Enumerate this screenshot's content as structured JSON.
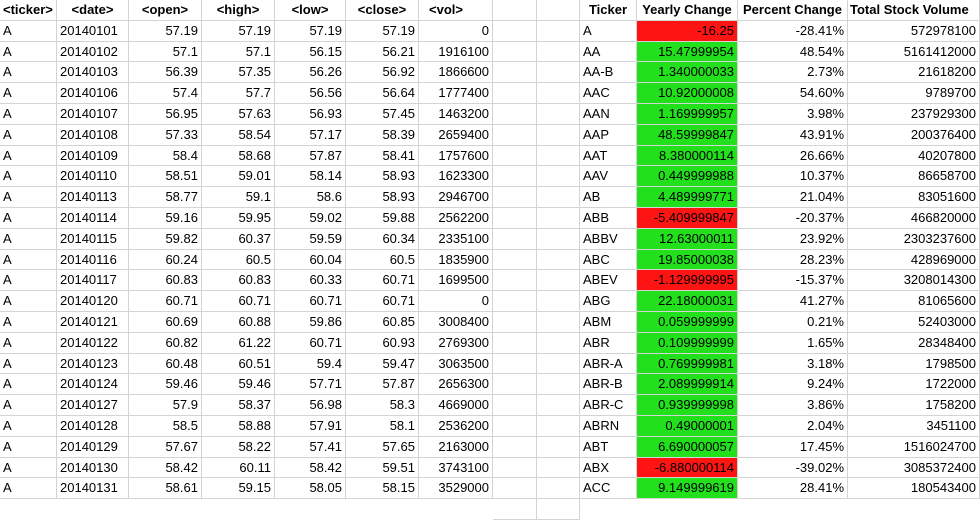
{
  "colors": {
    "positive": "#22e01c",
    "negative": "#ff1414",
    "gridline": "#d4d4d4"
  },
  "raw_table": {
    "headers": [
      "<ticker>",
      "<date>",
      "<open>",
      "<high>",
      "<low>",
      "<close>",
      "<vol>"
    ],
    "rows": [
      [
        "A",
        "20140101",
        "57.19",
        "57.19",
        "57.19",
        "57.19",
        "0"
      ],
      [
        "A",
        "20140102",
        "57.1",
        "57.1",
        "56.15",
        "56.21",
        "1916100"
      ],
      [
        "A",
        "20140103",
        "56.39",
        "57.35",
        "56.26",
        "56.92",
        "1866600"
      ],
      [
        "A",
        "20140106",
        "57.4",
        "57.7",
        "56.56",
        "56.64",
        "1777400"
      ],
      [
        "A",
        "20140107",
        "56.95",
        "57.63",
        "56.93",
        "57.45",
        "1463200"
      ],
      [
        "A",
        "20140108",
        "57.33",
        "58.54",
        "57.17",
        "58.39",
        "2659400"
      ],
      [
        "A",
        "20140109",
        "58.4",
        "58.68",
        "57.87",
        "58.41",
        "1757600"
      ],
      [
        "A",
        "20140110",
        "58.51",
        "59.01",
        "58.14",
        "58.93",
        "1623300"
      ],
      [
        "A",
        "20140113",
        "58.77",
        "59.1",
        "58.6",
        "58.93",
        "2946700"
      ],
      [
        "A",
        "20140114",
        "59.16",
        "59.95",
        "59.02",
        "59.88",
        "2562200"
      ],
      [
        "A",
        "20140115",
        "59.82",
        "60.37",
        "59.59",
        "60.34",
        "2335100"
      ],
      [
        "A",
        "20140116",
        "60.24",
        "60.5",
        "60.04",
        "60.5",
        "1835900"
      ],
      [
        "A",
        "20140117",
        "60.83",
        "60.83",
        "60.33",
        "60.71",
        "1699500"
      ],
      [
        "A",
        "20140120",
        "60.71",
        "60.71",
        "60.71",
        "60.71",
        "0"
      ],
      [
        "A",
        "20140121",
        "60.69",
        "60.88",
        "59.86",
        "60.85",
        "3008400"
      ],
      [
        "A",
        "20140122",
        "60.82",
        "61.22",
        "60.71",
        "60.93",
        "2769300"
      ],
      [
        "A",
        "20140123",
        "60.48",
        "60.51",
        "59.4",
        "59.47",
        "3063500"
      ],
      [
        "A",
        "20140124",
        "59.46",
        "59.46",
        "57.71",
        "57.87",
        "2656300"
      ],
      [
        "A",
        "20140127",
        "57.9",
        "58.37",
        "56.98",
        "58.3",
        "4669000"
      ],
      [
        "A",
        "20140128",
        "58.5",
        "58.88",
        "57.91",
        "58.1",
        "2536200"
      ],
      [
        "A",
        "20140129",
        "57.67",
        "58.22",
        "57.41",
        "57.65",
        "2163000"
      ],
      [
        "A",
        "20140130",
        "58.42",
        "60.11",
        "58.42",
        "59.51",
        "3743100"
      ],
      [
        "A",
        "20140131",
        "58.61",
        "59.15",
        "58.05",
        "58.15",
        "3529000"
      ]
    ]
  },
  "summary_table": {
    "headers": [
      "Ticker",
      "Yearly Change",
      "Percent Change",
      "Total Stock Volume"
    ],
    "rows": [
      {
        "ticker": "A",
        "yearly_change": "-16.25",
        "percent_change": "-28.41%",
        "total_volume": "572978100",
        "sign": "neg"
      },
      {
        "ticker": "AA",
        "yearly_change": "15.47999954",
        "percent_change": "48.54%",
        "total_volume": "5161412000",
        "sign": "pos"
      },
      {
        "ticker": "AA-B",
        "yearly_change": "1.340000033",
        "percent_change": "2.73%",
        "total_volume": "21618200",
        "sign": "pos"
      },
      {
        "ticker": "AAC",
        "yearly_change": "10.92000008",
        "percent_change": "54.60%",
        "total_volume": "9789700",
        "sign": "pos"
      },
      {
        "ticker": "AAN",
        "yearly_change": "1.169999957",
        "percent_change": "3.98%",
        "total_volume": "237929300",
        "sign": "pos"
      },
      {
        "ticker": "AAP",
        "yearly_change": "48.59999847",
        "percent_change": "43.91%",
        "total_volume": "200376400",
        "sign": "pos"
      },
      {
        "ticker": "AAT",
        "yearly_change": "8.380000114",
        "percent_change": "26.66%",
        "total_volume": "40207800",
        "sign": "pos"
      },
      {
        "ticker": "AAV",
        "yearly_change": "0.449999988",
        "percent_change": "10.37%",
        "total_volume": "86658700",
        "sign": "pos"
      },
      {
        "ticker": "AB",
        "yearly_change": "4.489999771",
        "percent_change": "21.04%",
        "total_volume": "83051600",
        "sign": "pos"
      },
      {
        "ticker": "ABB",
        "yearly_change": "-5.409999847",
        "percent_change": "-20.37%",
        "total_volume": "466820000",
        "sign": "neg"
      },
      {
        "ticker": "ABBV",
        "yearly_change": "12.63000011",
        "percent_change": "23.92%",
        "total_volume": "2303237600",
        "sign": "pos"
      },
      {
        "ticker": "ABC",
        "yearly_change": "19.85000038",
        "percent_change": "28.23%",
        "total_volume": "428969000",
        "sign": "pos"
      },
      {
        "ticker": "ABEV",
        "yearly_change": "-1.129999995",
        "percent_change": "-15.37%",
        "total_volume": "3208014300",
        "sign": "neg"
      },
      {
        "ticker": "ABG",
        "yearly_change": "22.18000031",
        "percent_change": "41.27%",
        "total_volume": "81065600",
        "sign": "pos"
      },
      {
        "ticker": "ABM",
        "yearly_change": "0.059999999",
        "percent_change": "0.21%",
        "total_volume": "52403000",
        "sign": "pos"
      },
      {
        "ticker": "ABR",
        "yearly_change": "0.109999999",
        "percent_change": "1.65%",
        "total_volume": "28348400",
        "sign": "pos"
      },
      {
        "ticker": "ABR-A",
        "yearly_change": "0.769999981",
        "percent_change": "3.18%",
        "total_volume": "1798500",
        "sign": "pos"
      },
      {
        "ticker": "ABR-B",
        "yearly_change": "2.089999914",
        "percent_change": "9.24%",
        "total_volume": "1722000",
        "sign": "pos"
      },
      {
        "ticker": "ABR-C",
        "yearly_change": "0.939999998",
        "percent_change": "3.86%",
        "total_volume": "1758200",
        "sign": "pos"
      },
      {
        "ticker": "ABRN",
        "yearly_change": "0.49000001",
        "percent_change": "2.04%",
        "total_volume": "3451100",
        "sign": "pos"
      },
      {
        "ticker": "ABT",
        "yearly_change": "6.690000057",
        "percent_change": "17.45%",
        "total_volume": "1516024700",
        "sign": "pos"
      },
      {
        "ticker": "ABX",
        "yearly_change": "-6.880000114",
        "percent_change": "-39.02%",
        "total_volume": "3085372400",
        "sign": "neg"
      },
      {
        "ticker": "ACC",
        "yearly_change": "9.149999619",
        "percent_change": "28.41%",
        "total_volume": "180543400",
        "sign": "pos"
      }
    ]
  }
}
